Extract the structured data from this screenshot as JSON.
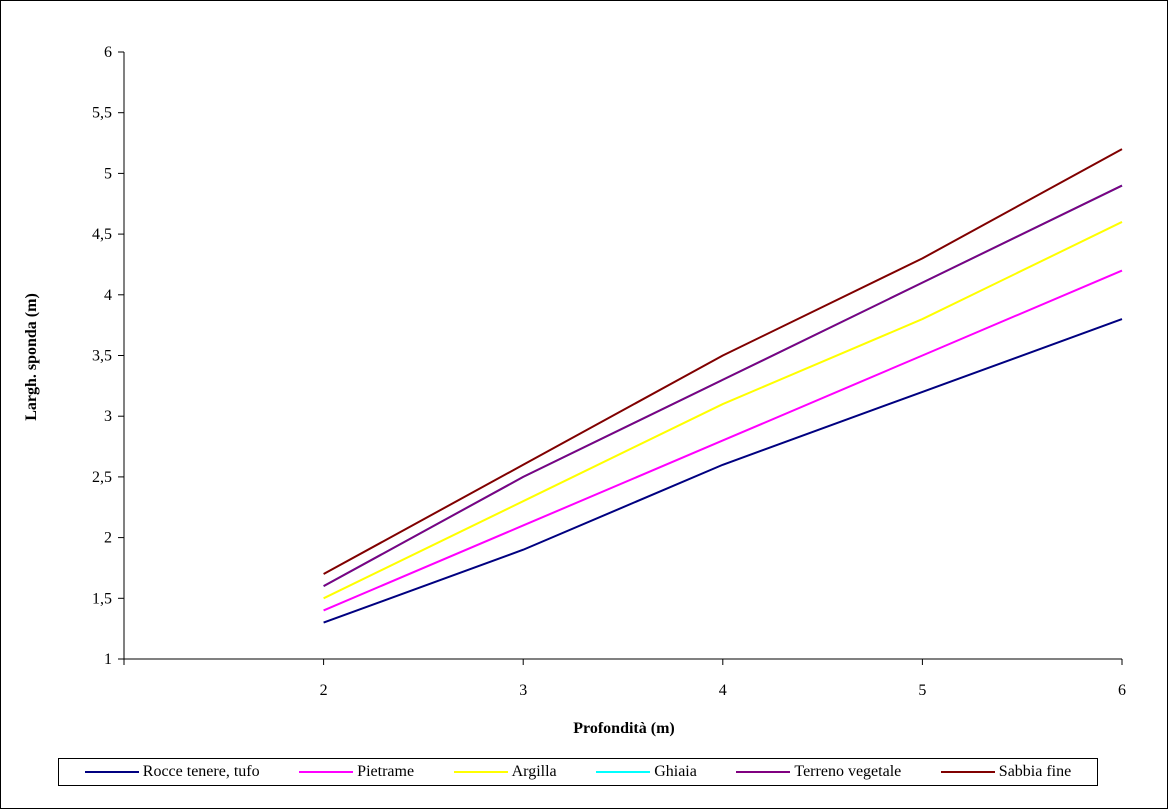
{
  "chart_data": {
    "type": "line",
    "title": "",
    "xlabel": "Profondità (m)",
    "ylabel": "Largh. sponda (m)",
    "x": [
      2,
      3,
      4,
      5,
      6
    ],
    "x_tick_labels": [
      "2",
      "3",
      "4",
      "5",
      "6"
    ],
    "ylim": [
      1,
      6
    ],
    "y_tick_labels": [
      "1",
      "1,5",
      "2",
      "2,5",
      "3",
      "3,5",
      "4",
      "4,5",
      "5",
      "5,5",
      "6"
    ],
    "grid": false,
    "legend_position": "bottom",
    "series": [
      {
        "name": "Rocce tenere, tufo",
        "color": "#000080",
        "values": [
          1.3,
          1.9,
          2.6,
          3.2,
          3.8
        ]
      },
      {
        "name": "Pietrame",
        "color": "#ff00ff",
        "values": [
          1.4,
          2.1,
          2.8,
          3.5,
          4.2
        ]
      },
      {
        "name": "Argilla",
        "color": "#ffff00",
        "values": [
          1.5,
          2.3,
          3.1,
          3.8,
          4.6
        ]
      },
      {
        "name": "Ghiaia",
        "color": "#00ffff",
        "values": [
          1.6,
          2.5,
          3.3,
          4.1,
          4.9
        ]
      },
      {
        "name": "Terreno vegetale",
        "color": "#800080",
        "values": [
          1.6,
          2.5,
          3.3,
          4.1,
          4.9
        ]
      },
      {
        "name": "Sabbia fine",
        "color": "#800000",
        "values": [
          1.7,
          2.6,
          3.5,
          4.3,
          5.2
        ]
      }
    ]
  }
}
